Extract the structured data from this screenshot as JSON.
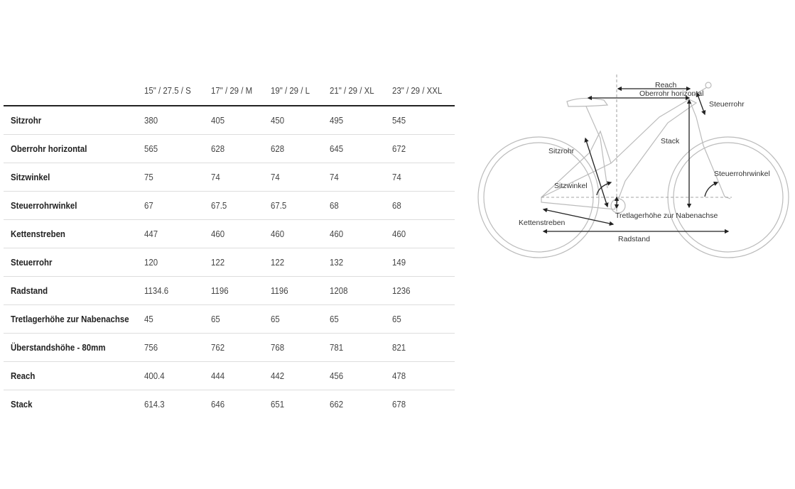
{
  "table": {
    "columns": [
      "15\" / 27.5 / S",
      "17\" / 29 / M",
      "19\" / 29 / L",
      "21\" / 29 / XL",
      "23\" / 29 / XXL"
    ],
    "rows": [
      {
        "label": "Sitzrohr",
        "values": [
          "380",
          "405",
          "450",
          "495",
          "545"
        ]
      },
      {
        "label": "Oberrohr horizontal",
        "values": [
          "565",
          "628",
          "628",
          "645",
          "672"
        ]
      },
      {
        "label": "Sitzwinkel",
        "values": [
          "75",
          "74",
          "74",
          "74",
          "74"
        ]
      },
      {
        "label": "Steuerrohrwinkel",
        "values": [
          "67",
          "67.5",
          "67.5",
          "68",
          "68"
        ]
      },
      {
        "label": "Kettenstreben",
        "values": [
          "447",
          "460",
          "460",
          "460",
          "460"
        ]
      },
      {
        "label": "Steuerrohr",
        "values": [
          "120",
          "122",
          "122",
          "132",
          "149"
        ]
      },
      {
        "label": "Radstand",
        "values": [
          "1134.6",
          "1196",
          "1196",
          "1208",
          "1236"
        ]
      },
      {
        "label": "Tretlagerhöhe zur Nabenachse",
        "values": [
          "45",
          "65",
          "65",
          "65",
          "65"
        ]
      },
      {
        "label": "Überstandshöhe - 80mm",
        "values": [
          "756",
          "762",
          "768",
          "781",
          "821"
        ]
      },
      {
        "label": "Reach",
        "values": [
          "400.4",
          "444",
          "442",
          "456",
          "478"
        ]
      },
      {
        "label": "Stack",
        "values": [
          "614.3",
          "646",
          "651",
          "662",
          "678"
        ]
      }
    ]
  },
  "diagram": {
    "labels": {
      "reach": "Reach",
      "oberrohr": "Oberrohr horizontal",
      "steuerrohr": "Steuerrohr",
      "stack": "Stack",
      "sitzrohr": "Sitzrohr",
      "sitzwinkel": "Sitzwinkel",
      "steuerrohrwinkel": "Steuerrohrwinkel",
      "tretlager": "Tretlagerhöhe zur Nabenachse",
      "kettenstreben": "Kettenstreben",
      "radstand": "Radstand"
    },
    "colors": {
      "frame": "#bbbbbb",
      "arrows": "#222222"
    }
  }
}
